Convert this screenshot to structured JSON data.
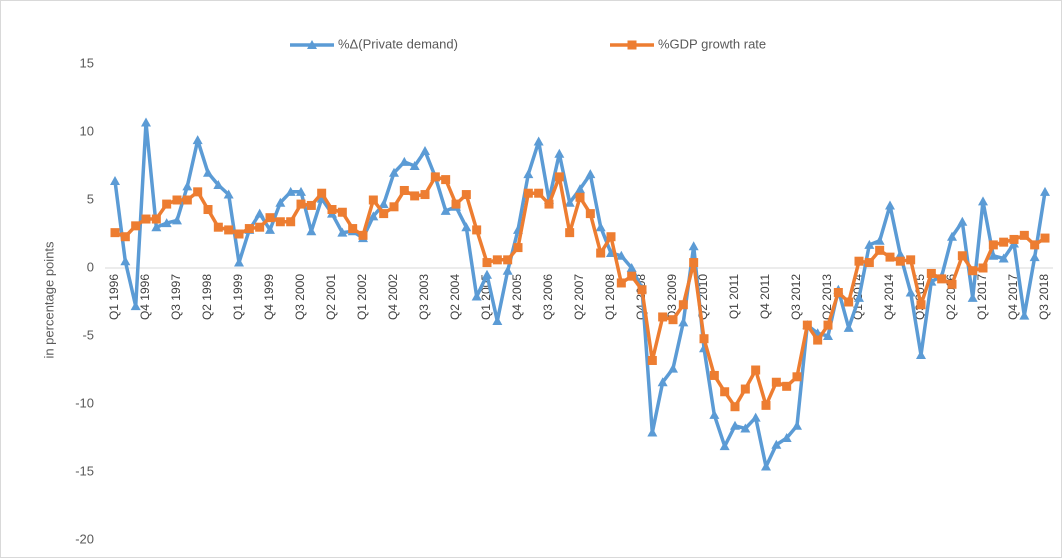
{
  "chart_data": {
    "type": "line",
    "y_label": "in percentage points",
    "categories": [
      "Q1 1996",
      null,
      null,
      "Q4 1996",
      null,
      null,
      "Q3 1997",
      null,
      null,
      "Q2 1998",
      null,
      null,
      "Q1 1999",
      null,
      null,
      "Q4 1999",
      null,
      null,
      "Q3 2000",
      null,
      null,
      "Q2 2001",
      null,
      null,
      "Q1 2002",
      null,
      null,
      "Q4 2002",
      null,
      null,
      "Q3 2003",
      null,
      null,
      "Q2 2004",
      null,
      null,
      "Q1 2005",
      null,
      null,
      "Q4 2005",
      null,
      null,
      "Q3 2006",
      null,
      null,
      "Q2 2007",
      null,
      null,
      "Q1 2008",
      null,
      null,
      "Q4 2008",
      null,
      null,
      "Q3 2009",
      null,
      null,
      "Q2 2010",
      null,
      null,
      "Q1 2011",
      null,
      null,
      "Q4 2011",
      null,
      null,
      "Q3 2012",
      null,
      null,
      "Q2 2013",
      null,
      null,
      "Q1 2014",
      null,
      null,
      "Q4 2014",
      null,
      null,
      "Q3 2015",
      null,
      null,
      "Q2 2016",
      null,
      null,
      "Q1 2017",
      null,
      null,
      "Q4 2017",
      null,
      null,
      "Q3 2018"
    ],
    "series": [
      {
        "name": "%Δ(Private demand)",
        "color": "#5b9bd5",
        "marker": "triangle",
        "values": [
          6.4,
          0.5,
          -2.8,
          10.7,
          3.0,
          3.3,
          3.5,
          6.0,
          9.4,
          7.0,
          6.1,
          5.4,
          0.4,
          2.8,
          4.0,
          2.8,
          4.8,
          5.6,
          5.6,
          2.7,
          5.1,
          4.0,
          2.6,
          2.7,
          2.2,
          3.8,
          4.7,
          7.0,
          7.8,
          7.5,
          8.6,
          6.7,
          4.2,
          4.5,
          3.0,
          -2.1,
          -0.5,
          -3.9,
          -0.2,
          2.8,
          6.9,
          9.3,
          5.0,
          8.4,
          4.8,
          5.8,
          6.9,
          3.0,
          1.1,
          0.9,
          0.0,
          -1.5,
          -12.1,
          -8.4,
          -7.4,
          -4.0,
          1.6,
          -5.9,
          -10.8,
          -13.1,
          -11.6,
          -11.8,
          -11.0,
          -14.6,
          -13.0,
          -12.5,
          -11.6,
          -4.2,
          -4.8,
          -5.0,
          -1.6,
          -4.4,
          -2.2,
          1.7,
          2.0,
          4.6,
          1.0,
          -1.8,
          -6.4,
          -1.0,
          -0.6,
          2.3,
          3.4,
          -2.2,
          4.9,
          0.9,
          0.7,
          1.8,
          -3.5,
          0.8,
          5.6
        ]
      },
      {
        "name": "%GDP growth rate",
        "color": "#ed7d31",
        "marker": "square",
        "values": [
          2.6,
          2.3,
          3.1,
          3.6,
          3.6,
          4.7,
          5.0,
          5.0,
          5.6,
          4.3,
          3.0,
          2.8,
          2.5,
          2.9,
          3.0,
          3.7,
          3.4,
          3.4,
          4.7,
          4.6,
          5.5,
          4.3,
          4.1,
          2.9,
          2.4,
          5.0,
          4.0,
          4.5,
          5.7,
          5.3,
          5.4,
          6.7,
          6.5,
          4.7,
          5.4,
          2.8,
          0.4,
          0.6,
          0.6,
          1.5,
          5.5,
          5.5,
          4.7,
          6.7,
          2.6,
          5.2,
          4.0,
          1.1,
          2.3,
          -1.1,
          -0.6,
          -1.6,
          -6.8,
          -3.6,
          -3.8,
          -2.7,
          0.4,
          -5.2,
          -7.9,
          -9.1,
          -10.2,
          -8.9,
          -7.5,
          -10.1,
          -8.4,
          -8.7,
          -8.0,
          -4.2,
          -5.3,
          -4.2,
          -1.8,
          -2.5,
          0.5,
          0.4,
          1.3,
          0.8,
          0.5,
          0.6,
          -2.7,
          -0.4,
          -0.8,
          -1.2,
          0.9,
          -0.2,
          0.0,
          1.7,
          1.9,
          2.1,
          2.4,
          1.7,
          2.2
        ]
      }
    ],
    "ylim": [
      -20,
      15
    ],
    "yticks": [
      -20,
      -15,
      -10,
      -5,
      0,
      5,
      10,
      15
    ],
    "grid": false,
    "legend": "top"
  }
}
